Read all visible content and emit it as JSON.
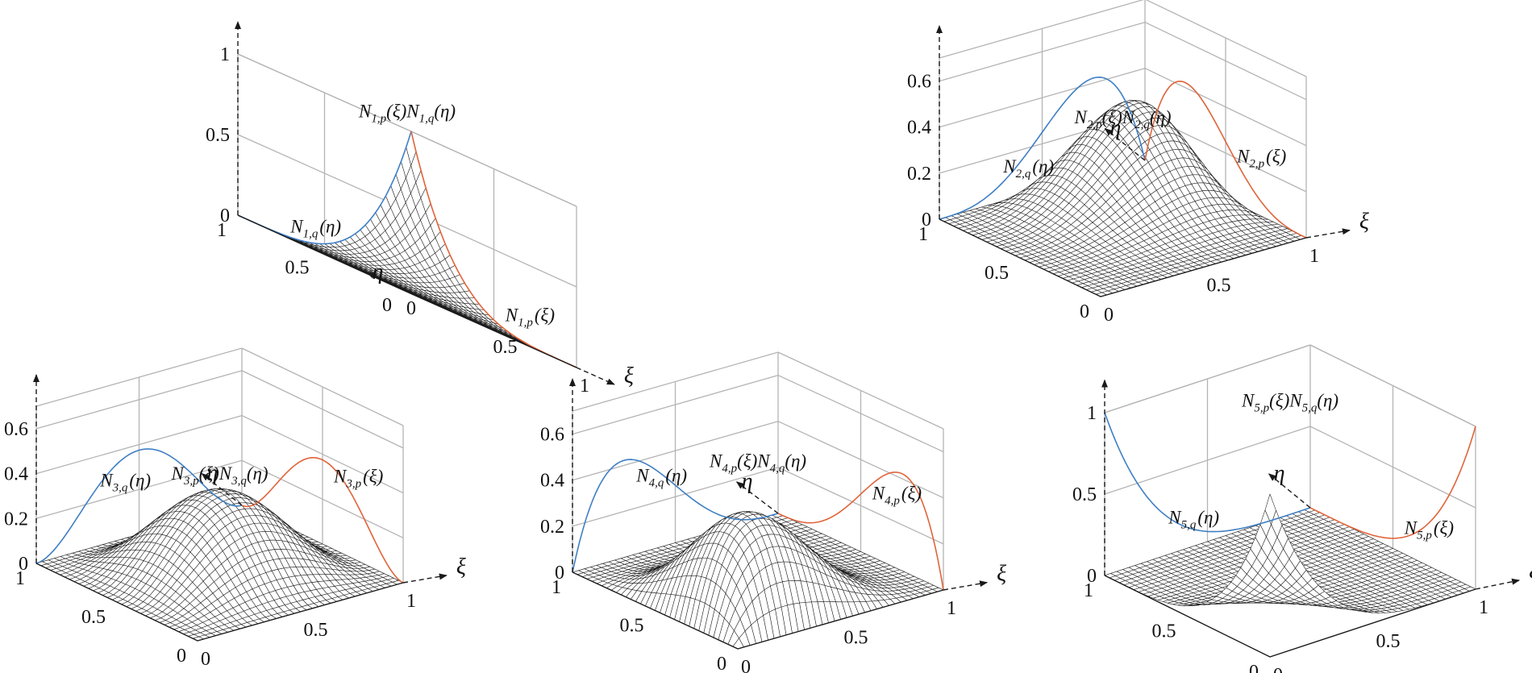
{
  "colors": {
    "eta_curve": "#3f7fc4",
    "xi_curve": "#e0643a",
    "mesh_line": "#1c1c1c",
    "mesh_fill": "#ffffff",
    "grid": "#b4b4b4",
    "axis": "#1a1a1a"
  },
  "chart_data": [
    {
      "type": "surface",
      "index": "1",
      "z_ticks": [
        "0",
        "0.5",
        "1"
      ],
      "zmax_value": 1.0,
      "eta_ticks": [
        "0",
        "0.5",
        "1"
      ],
      "xi_ticks": [
        "0",
        "0.5",
        "1"
      ],
      "eta_label": "η",
      "xi_label": "ξ",
      "curves": {
        "eta_curve": {
          "label": "N1,q(η)",
          "description": "quartic Bernstein basis 1: (1-t)^4",
          "peak": 1.0
        },
        "xi_curve": {
          "label": "N1,p(ξ)",
          "description": "quartic Bernstein basis 1",
          "peak": 1.0
        },
        "surface": {
          "label": "N1,p(ξ)N1,q(η)",
          "peak": 1.0
        }
      },
      "labels": {
        "eta_curve": {
          "main": "N",
          "sub": "1,q",
          "arg": "(η)"
        },
        "xi_curve": {
          "main": "N",
          "sub": "1,p",
          "arg": "(ξ)"
        },
        "surface": {
          "main1": "N",
          "sub1": "1,p",
          "arg1": "(ξ)",
          "main2": "N",
          "sub2": "1,q",
          "arg2": "(η)"
        }
      }
    },
    {
      "type": "surface",
      "index": "2",
      "z_ticks": [
        "0",
        "0.2",
        "0.4",
        "0.6"
      ],
      "zmax_value": 0.7,
      "eta_ticks": [
        "0",
        "0.5",
        "1"
      ],
      "xi_ticks": [
        "0",
        "0.5",
        "1"
      ],
      "eta_label": "η",
      "xi_label": "ξ",
      "curves": {
        "eta_curve": {
          "label": "N2,q(η)",
          "peak": 0.63
        },
        "xi_curve": {
          "label": "N2,p(ξ)",
          "peak": 0.63
        },
        "surface": {
          "label": "N2,p(ξ)N2,q(η)",
          "peak": 0.4
        }
      },
      "labels": {
        "eta_curve": {
          "main": "N",
          "sub": "2,q",
          "arg": "(η)"
        },
        "xi_curve": {
          "main": "N",
          "sub": "2,p",
          "arg": "(ξ)"
        },
        "surface": {
          "main1": "N",
          "sub1": "2,p",
          "arg1": "(ξ)",
          "main2": "N",
          "sub2": "2,q",
          "arg2": "(η)"
        }
      }
    },
    {
      "type": "surface",
      "index": "3",
      "z_ticks": [
        "0",
        "0.2",
        "0.4",
        "0.6"
      ],
      "zmax_value": 0.7,
      "eta_ticks": [
        "0",
        "0.5",
        "1"
      ],
      "xi_ticks": [
        "0",
        "0.5",
        "1"
      ],
      "eta_label": "η",
      "xi_label": "ξ",
      "curves": {
        "eta_curve": {
          "label": "N3,q(η)",
          "peak": 0.6
        },
        "xi_curve": {
          "label": "N3,p(ξ)",
          "peak": 0.6
        },
        "surface": {
          "label": "N3,p(ξ)N3,q(η)",
          "peak": 0.36
        }
      },
      "labels": {
        "eta_curve": {
          "main": "N",
          "sub": "3,q",
          "arg": "(η)"
        },
        "xi_curve": {
          "main": "N",
          "sub": "3,p",
          "arg": "(ξ)"
        },
        "surface": {
          "main1": "N",
          "sub1": "3,p",
          "arg1": "(ξ)",
          "main2": "N",
          "sub2": "3,q",
          "arg2": "(η)"
        }
      }
    },
    {
      "type": "surface",
      "index": "4",
      "z_ticks": [
        "0",
        "0.2",
        "0.4",
        "0.6"
      ],
      "zmax_value": 0.7,
      "eta_ticks": [
        "0",
        "0.5",
        "1"
      ],
      "xi_ticks": [
        "0",
        "0.5",
        "1"
      ],
      "eta_label": "η",
      "xi_label": "ξ",
      "curves": {
        "eta_curve": {
          "label": "N4,q(η)",
          "peak": 0.66
        },
        "xi_curve": {
          "label": "N4,p(ξ)",
          "peak": 0.66
        },
        "surface": {
          "label": "N4,p(ξ)N4,q(η)",
          "peak": 0.44
        }
      },
      "labels": {
        "eta_curve": {
          "main": "N",
          "sub": "4,q",
          "arg": "(η)"
        },
        "xi_curve": {
          "main": "N",
          "sub": "4,p",
          "arg": "(ξ)"
        },
        "surface": {
          "main1": "N",
          "sub1": "4,p",
          "arg1": "(ξ)",
          "main2": "N",
          "sub2": "4,q",
          "arg2": "(η)"
        }
      }
    },
    {
      "type": "surface",
      "index": "5",
      "z_ticks": [
        "0",
        "0.5",
        "1"
      ],
      "zmax_value": 1.0,
      "eta_ticks": [
        "0",
        "0.5",
        "1"
      ],
      "xi_ticks": [
        "0",
        "0.5",
        "1"
      ],
      "eta_label": "η",
      "xi_label": "ξ",
      "curves": {
        "eta_curve": {
          "label": "N5,q(η)",
          "peak": 1.0
        },
        "xi_curve": {
          "label": "N5,p(ξ)",
          "peak": 1.0
        },
        "surface": {
          "label": "N5,p(ξ)N5,q(η)",
          "peak": 1.0
        }
      },
      "labels": {
        "eta_curve": {
          "main": "N",
          "sub": "5,q",
          "arg": "(η)"
        },
        "xi_curve": {
          "main": "N",
          "sub": "5,p",
          "arg": "(ξ)"
        },
        "surface": {
          "main1": "N",
          "sub1": "5,p",
          "arg1": "(ξ)",
          "main2": "N",
          "sub2": "5,q",
          "arg2": "(η)"
        }
      }
    }
  ]
}
